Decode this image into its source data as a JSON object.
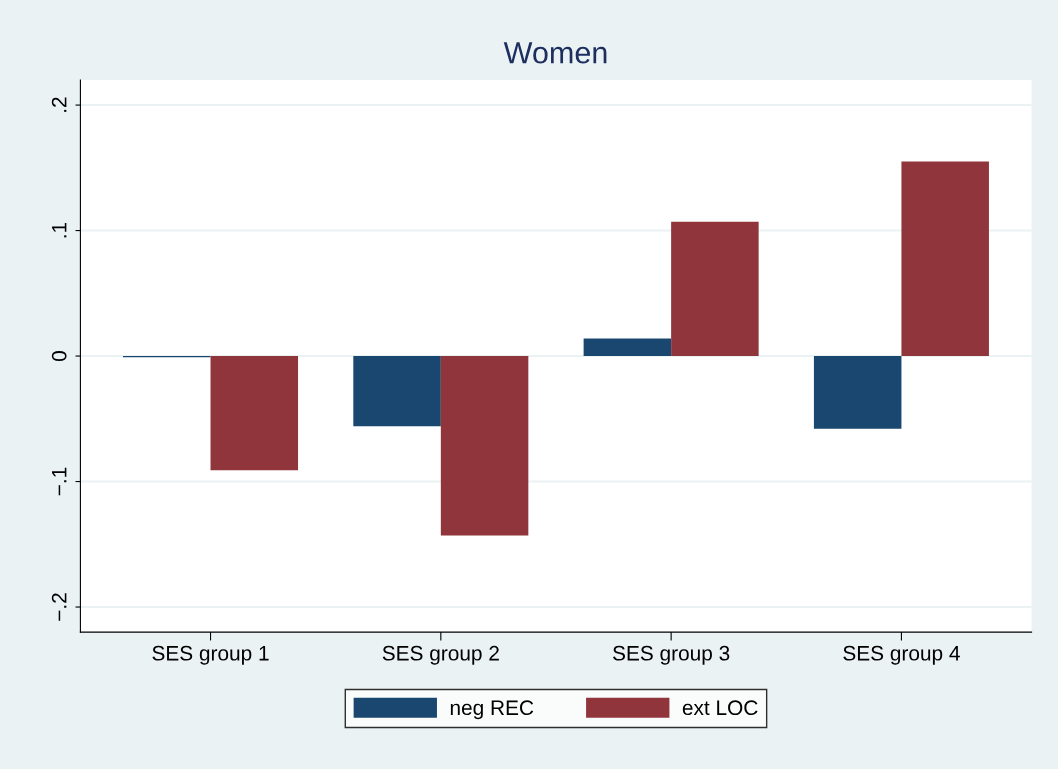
{
  "chart_data": {
    "type": "bar",
    "title": "Women",
    "categories": [
      "SES group 1",
      "SES group 2",
      "SES group 3",
      "SES group 4"
    ],
    "series": [
      {
        "name": "neg REC",
        "color": "#1a476f",
        "values": [
          -0.001,
          -0.056,
          0.014,
          -0.058
        ]
      },
      {
        "name": "ext LOC",
        "color": "#90353b",
        "values": [
          -0.091,
          -0.143,
          0.107,
          0.155
        ]
      }
    ],
    "ylim": [
      -0.22,
      0.22
    ],
    "yticks": [
      {
        "value": -0.2,
        "label": "−.2"
      },
      {
        "value": -0.1,
        "label": "−.1"
      },
      0,
      {
        "value": 0.1,
        "label": ".1"
      },
      {
        "value": 0.2,
        "label": ".2"
      }
    ],
    "grid": "y",
    "legend": "bottom"
  }
}
